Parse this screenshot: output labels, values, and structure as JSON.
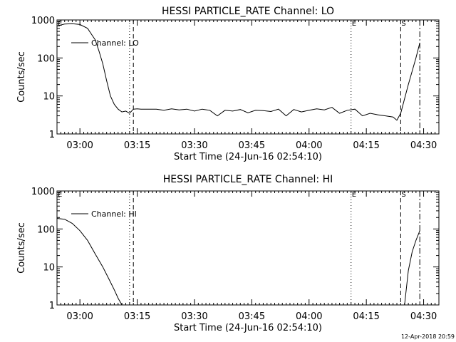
{
  "footer": {
    "date_stamp": "12-Apr-2018 20:59"
  },
  "chart_data": [
    {
      "type": "line",
      "title": "HESSI PARTICLE_RATE Channel: LO",
      "xlabel": "Start Time (24-Jun-16 02:54:10)",
      "ylabel": "Counts/sec",
      "y_scale": "log",
      "ylim": [
        1,
        1000
      ],
      "xlim": [
        "02:54",
        "04:34"
      ],
      "x_ticks": [
        "03:00",
        "03:15",
        "03:30",
        "03:45",
        "04:00",
        "04:15",
        "04:30"
      ],
      "y_ticks": [
        "1",
        "10",
        "100",
        "1000"
      ],
      "legend": {
        "placement": "top-left",
        "entries": [
          "Channel: LO"
        ]
      },
      "markers": [
        {
          "label": "E",
          "time": "02:54",
          "style": "dotted"
        },
        {
          "label": "",
          "time": "03:13",
          "style": "dotted"
        },
        {
          "label": "",
          "time": "03:14",
          "style": "dashed"
        },
        {
          "label": "E",
          "time": "04:11",
          "style": "dotted"
        },
        {
          "label": "S",
          "time": "04:24",
          "style": "dashed"
        },
        {
          "label": "",
          "time": "04:29",
          "style": "dash-dot"
        }
      ],
      "series": [
        {
          "name": "Channel: LO",
          "x": [
            "02:54",
            "02:56",
            "02:58",
            "03:00",
            "03:02",
            "03:04",
            "03:05",
            "03:06",
            "03:07",
            "03:08",
            "03:09",
            "03:10",
            "03:11",
            "03:12",
            "03:13",
            "03:14",
            "03:15",
            "03:16",
            "03:18",
            "03:20",
            "03:22",
            "03:24",
            "03:26",
            "03:28",
            "03:30",
            "03:32",
            "03:34",
            "03:36",
            "03:38",
            "03:40",
            "03:42",
            "03:44",
            "03:46",
            "03:48",
            "03:50",
            "03:52",
            "03:54",
            "03:56",
            "03:58",
            "04:00",
            "04:02",
            "04:04",
            "04:06",
            "04:08",
            "04:10",
            "04:12",
            "04:14",
            "04:16",
            "04:18",
            "04:20",
            "04:22",
            "04:23",
            "04:24",
            "04:26",
            "04:28",
            "04:29"
          ],
          "y": [
            700,
            780,
            800,
            760,
            600,
            300,
            150,
            70,
            25,
            10,
            6,
            4.5,
            3.8,
            4,
            3.5,
            4.5,
            4.6,
            4.5,
            4.5,
            4.5,
            4.2,
            4.6,
            4.3,
            4.5,
            4.0,
            4.5,
            4.2,
            3.0,
            4.2,
            4.0,
            4.4,
            3.6,
            4.2,
            4.1,
            3.9,
            4.5,
            3.0,
            4.4,
            3.8,
            4.2,
            4.6,
            4.3,
            5.0,
            3.5,
            4.2,
            4.5,
            3.0,
            3.5,
            3.2,
            3.0,
            2.8,
            2.3,
            3.5,
            20,
            100,
            250
          ]
        }
      ]
    },
    {
      "type": "line",
      "title": "HESSI PARTICLE_RATE Channel: HI",
      "xlabel": "Start Time (24-Jun-16 02:54:10)",
      "ylabel": "Counts/sec",
      "y_scale": "log",
      "ylim": [
        1,
        1000
      ],
      "xlim": [
        "02:54",
        "04:34"
      ],
      "x_ticks": [
        "03:00",
        "03:15",
        "03:30",
        "03:45",
        "04:00",
        "04:15",
        "04:30"
      ],
      "y_ticks": [
        "1",
        "10",
        "100",
        "1000"
      ],
      "legend": {
        "placement": "top-left",
        "entries": [
          "Channel: HI"
        ]
      },
      "markers": [
        {
          "label": "E",
          "time": "02:54",
          "style": "dotted"
        },
        {
          "label": "",
          "time": "03:13",
          "style": "dotted"
        },
        {
          "label": "",
          "time": "03:14",
          "style": "dashed"
        },
        {
          "label": "E",
          "time": "04:11",
          "style": "dotted"
        },
        {
          "label": "S",
          "time": "04:24",
          "style": "dashed"
        },
        {
          "label": "",
          "time": "04:29",
          "style": "dash-dot"
        }
      ],
      "series": [
        {
          "name": "Channel: HI",
          "x": [
            "02:54",
            "02:56",
            "02:58",
            "03:00",
            "03:02",
            "03:04",
            "03:06",
            "03:08",
            "03:09",
            "03:10",
            "03:11",
            "04:25",
            "04:26",
            "04:27",
            "04:28",
            "04:29"
          ],
          "y": [
            190,
            180,
            140,
            90,
            50,
            22,
            10,
            4,
            2.5,
            1.5,
            1,
            1,
            8,
            25,
            50,
            90
          ]
        }
      ]
    }
  ]
}
